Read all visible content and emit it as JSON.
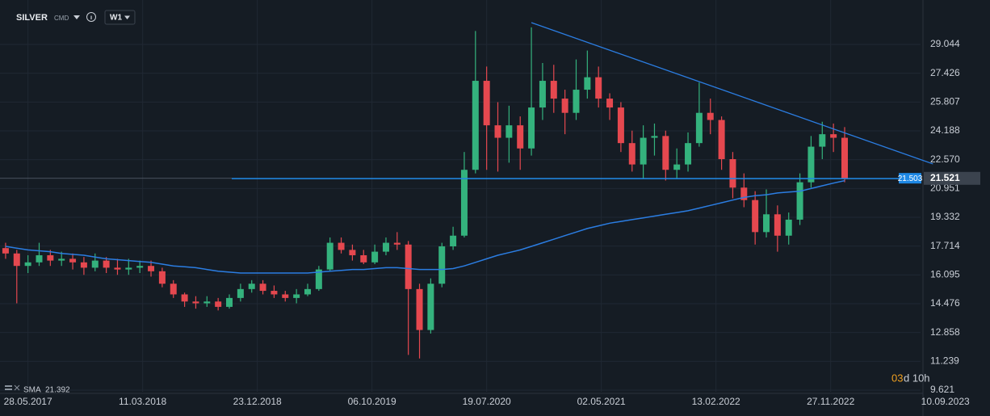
{
  "header": {
    "symbol": "SILVER",
    "market": "CMD",
    "timeframe": "W1"
  },
  "chart_data": {
    "type": "candlestick",
    "x": [
      "02.04.2017",
      "30.04.2017",
      "28.05.2017",
      "25.06.2017",
      "23.07.2017",
      "20.08.2017",
      "17.09.2017",
      "15.10.2017",
      "12.11.2017",
      "10.12.2017",
      "07.01.2018",
      "04.02.2018",
      "04.03.2018",
      "01.04.2018",
      "29.04.2018",
      "27.05.2018",
      "24.06.2018",
      "22.07.2018",
      "19.08.2018",
      "16.09.2018",
      "14.10.2018",
      "11.11.2018",
      "09.12.2018",
      "06.01.2019",
      "03.02.2019",
      "03.03.2019",
      "31.03.2019",
      "28.04.2019",
      "26.05.2019",
      "23.06.2019",
      "21.07.2019",
      "18.08.2019",
      "15.09.2019",
      "13.10.2019",
      "10.11.2019",
      "08.12.2019",
      "05.01.2020",
      "02.02.2020",
      "01.03.2020",
      "29.03.2020",
      "26.04.2020",
      "24.05.2020",
      "21.06.2020",
      "19.07.2020",
      "16.08.2020",
      "13.09.2020",
      "11.10.2020",
      "08.11.2020",
      "06.12.2020",
      "03.01.2021",
      "31.01.2021",
      "28.02.2021",
      "28.03.2021",
      "25.04.2021",
      "23.05.2021",
      "20.06.2021",
      "18.07.2021",
      "15.08.2021",
      "12.09.2021",
      "10.10.2021",
      "07.11.2021",
      "05.12.2021",
      "02.01.2022",
      "30.01.2022",
      "27.02.2022",
      "27.03.2022",
      "24.04.2022",
      "22.05.2022",
      "19.06.2022",
      "17.07.2022",
      "14.08.2022",
      "11.09.2022",
      "09.10.2022",
      "06.11.2022",
      "04.12.2022",
      "01.01.2023"
    ],
    "open": [
      17.6,
      17.3,
      16.6,
      16.8,
      17.2,
      16.9,
      17.0,
      16.8,
      16.5,
      16.9,
      16.5,
      16.4,
      16.5,
      16.6,
      16.3,
      15.6,
      15.0,
      14.6,
      14.5,
      14.6,
      14.3,
      14.8,
      15.3,
      15.6,
      15.2,
      15.0,
      14.8,
      15.0,
      15.3,
      16.4,
      17.9,
      17.5,
      17.2,
      16.8,
      17.4,
      17.9,
      17.8,
      15.3,
      13.0,
      15.6,
      17.7,
      18.3,
      22.0,
      27.0,
      24.5,
      23.8,
      24.5,
      23.2,
      25.5,
      27.0,
      26.0,
      25.2,
      26.5,
      27.2,
      26.0,
      25.5,
      23.5,
      22.3,
      23.8,
      23.9,
      22.0,
      22.3,
      23.5,
      25.2,
      24.8,
      22.6,
      21.0,
      20.3,
      18.5,
      19.5,
      18.3,
      19.2,
      21.3,
      23.3,
      24.0,
      23.8
    ],
    "high": [
      17.9,
      17.5,
      17.2,
      17.9,
      17.5,
      17.4,
      17.3,
      17.1,
      17.3,
      17.1,
      17.0,
      17.0,
      16.9,
      16.9,
      16.5,
      15.8,
      15.1,
      14.9,
      14.9,
      14.8,
      15.0,
      15.6,
      15.8,
      15.8,
      15.5,
      15.2,
      15.3,
      15.6,
      16.6,
      18.2,
      18.2,
      17.8,
      17.5,
      17.8,
      18.2,
      18.5,
      18.0,
      15.6,
      15.9,
      17.9,
      18.8,
      23.0,
      29.8,
      27.8,
      25.8,
      25.6,
      25.0,
      30.0,
      28.0,
      27.9,
      26.5,
      28.2,
      28.7,
      27.8,
      26.3,
      25.8,
      24.2,
      24.5,
      24.6,
      24.2,
      23.2,
      24.1,
      26.9,
      26.0,
      25.0,
      23.0,
      21.8,
      20.8,
      20.9,
      20.0,
      19.6,
      21.8,
      23.9,
      24.7,
      24.6,
      24.4
    ],
    "low": [
      17.0,
      14.5,
      16.2,
      16.6,
      16.6,
      16.6,
      16.4,
      16.1,
      16.3,
      16.2,
      16.1,
      16.1,
      16.2,
      16.0,
      15.4,
      14.8,
      14.3,
      14.2,
      14.3,
      14.1,
      14.2,
      14.6,
      15.1,
      15.0,
      14.8,
      14.6,
      14.5,
      14.9,
      15.2,
      16.3,
      17.3,
      16.9,
      16.7,
      16.7,
      17.2,
      17.5,
      11.6,
      11.4,
      12.8,
      15.4,
      17.5,
      18.2,
      21.8,
      22.0,
      21.9,
      22.4,
      22.0,
      22.8,
      24.8,
      25.2,
      24.0,
      24.8,
      26.0,
      25.5,
      24.8,
      23.0,
      21.9,
      21.5,
      22.8,
      21.4,
      21.5,
      21.9,
      23.3,
      24.0,
      22.0,
      20.4,
      19.9,
      17.8,
      18.2,
      17.4,
      17.8,
      18.9,
      21.0,
      22.6,
      23.0,
      21.3
    ],
    "close": [
      17.3,
      16.6,
      16.8,
      17.2,
      16.9,
      17.0,
      16.8,
      16.5,
      16.9,
      16.5,
      16.4,
      16.5,
      16.6,
      16.3,
      15.6,
      15.0,
      14.6,
      14.5,
      14.6,
      14.3,
      14.8,
      15.3,
      15.6,
      15.2,
      15.0,
      14.8,
      15.0,
      15.3,
      16.4,
      17.9,
      17.5,
      17.2,
      16.8,
      17.4,
      17.9,
      17.8,
      15.3,
      13.0,
      15.6,
      17.7,
      18.3,
      22.0,
      27.0,
      24.5,
      23.8,
      24.5,
      23.2,
      25.5,
      27.0,
      26.0,
      25.2,
      26.5,
      27.2,
      26.0,
      25.5,
      23.5,
      22.3,
      23.8,
      23.9,
      22.0,
      22.3,
      23.5,
      25.2,
      24.8,
      22.6,
      21.0,
      20.3,
      18.5,
      19.5,
      18.3,
      19.2,
      21.3,
      23.3,
      24.0,
      23.8,
      21.5
    ],
    "up_color": "#34b27d",
    "down_color": "#e5484f",
    "xlim": [
      "19.03.2017",
      "10.07.2023"
    ],
    "xticks": [
      "28.05.2017",
      "11.03.2018",
      "23.12.2018",
      "06.10.2019",
      "19.07.2020",
      "02.05.2021",
      "13.02.2022",
      "27.11.2022",
      "10.09.2023"
    ],
    "ylim": [
      9.53,
      31.54
    ],
    "yticks": [
      29.044,
      27.426,
      25.807,
      24.188,
      {
        "value": 22.57,
        "label": "22.570"
      },
      20.951,
      19.332,
      17.714,
      16.095,
      14.476,
      12.858,
      11.239,
      9.621
    ],
    "grid": true,
    "indicators": [
      {
        "name": "SMA",
        "color": "#2b7de2",
        "values": [
          17.7,
          17.6,
          17.5,
          17.45,
          17.4,
          17.3,
          17.25,
          17.2,
          17.1,
          17.0,
          16.95,
          16.9,
          16.85,
          16.8,
          16.7,
          16.6,
          16.55,
          16.5,
          16.4,
          16.3,
          16.25,
          16.2,
          16.2,
          16.2,
          16.2,
          16.2,
          16.2,
          16.2,
          16.25,
          16.3,
          16.35,
          16.4,
          16.4,
          16.45,
          16.5,
          16.5,
          16.45,
          16.4,
          16.4,
          16.4,
          16.45,
          16.6,
          16.8,
          17.0,
          17.2,
          17.35,
          17.5,
          17.7,
          17.9,
          18.1,
          18.3,
          18.5,
          18.7,
          18.85,
          19.0,
          19.1,
          19.2,
          19.3,
          19.4,
          19.5,
          19.6,
          19.7,
          19.85,
          20.0,
          20.15,
          20.3,
          20.45,
          20.55,
          20.6,
          20.7,
          20.75,
          20.8,
          20.95,
          21.1,
          21.25,
          21.392
        ]
      }
    ],
    "trendline": {
      "x": [
        "08.11.2020",
        "10.08.2023"
      ],
      "y": [
        30.27,
        22.33
      ],
      "color": "#2b7de2"
    },
    "level": {
      "value": 21.503,
      "from": "20.10.2018",
      "color": "#1e88e5"
    },
    "last_price": 21.521,
    "countdown": [
      "03",
      "d 10h"
    ]
  }
}
